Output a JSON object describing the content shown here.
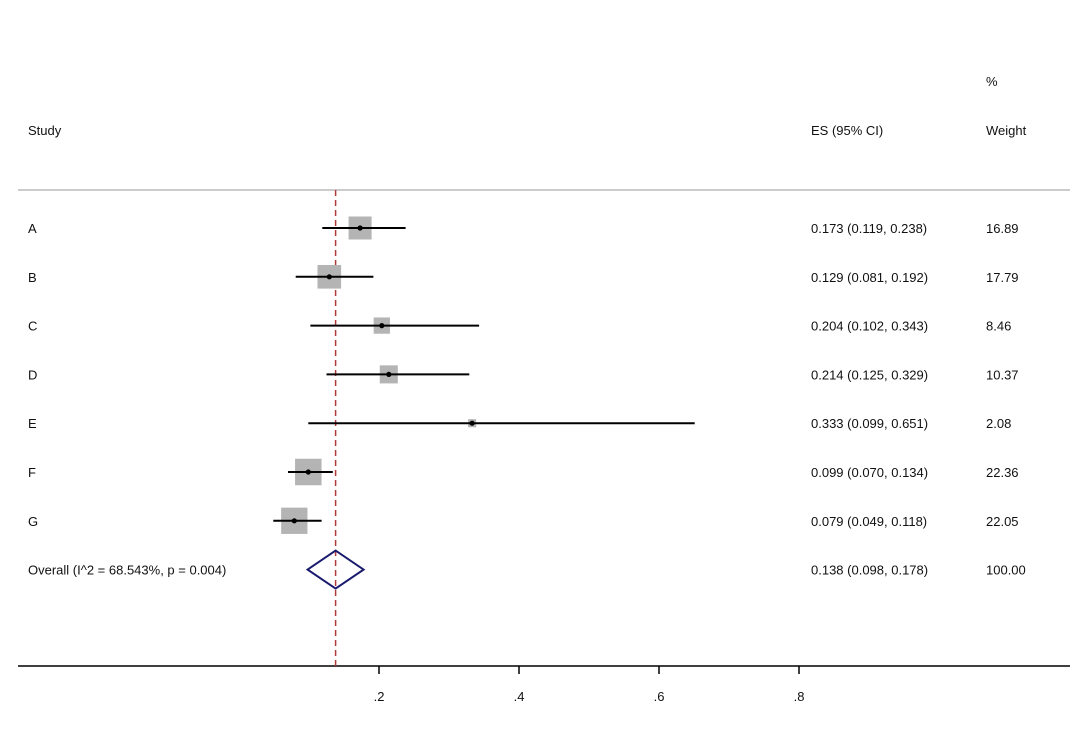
{
  "chart_data": {
    "type": "forest",
    "headers": {
      "study": "Study",
      "es": "ES (95% CI)",
      "weight_top": "%",
      "weight": "Weight"
    },
    "studies": [
      {
        "label": "A",
        "es": 0.173,
        "lo": 0.119,
        "hi": 0.238,
        "es_text": "0.173 (0.119, 0.238)",
        "weight": 16.89,
        "weight_text": "16.89"
      },
      {
        "label": "B",
        "es": 0.129,
        "lo": 0.081,
        "hi": 0.192,
        "es_text": "0.129 (0.081, 0.192)",
        "weight": 17.79,
        "weight_text": "17.79"
      },
      {
        "label": "C",
        "es": 0.204,
        "lo": 0.102,
        "hi": 0.343,
        "es_text": "0.204 (0.102, 0.343)",
        "weight": 8.46,
        "weight_text": "8.46"
      },
      {
        "label": "D",
        "es": 0.214,
        "lo": 0.125,
        "hi": 0.329,
        "es_text": "0.214 (0.125, 0.329)",
        "weight": 10.37,
        "weight_text": "10.37"
      },
      {
        "label": "E",
        "es": 0.333,
        "lo": 0.099,
        "hi": 0.651,
        "es_text": "0.333 (0.099, 0.651)",
        "weight": 2.08,
        "weight_text": "2.08"
      },
      {
        "label": "F",
        "es": 0.099,
        "lo": 0.07,
        "hi": 0.134,
        "es_text": "0.099 (0.070, 0.134)",
        "weight": 22.36,
        "weight_text": "22.36"
      },
      {
        "label": "G",
        "es": 0.079,
        "lo": 0.049,
        "hi": 0.118,
        "es_text": "0.079 (0.049, 0.118)",
        "weight": 22.05,
        "weight_text": "22.05"
      }
    ],
    "overall": {
      "label": "Overall  (I^2 = 68.543%, p = 0.004)",
      "es": 0.138,
      "lo": 0.098,
      "hi": 0.178,
      "es_text": "0.138 (0.098, 0.178)",
      "weight_text": "100.00"
    },
    "x_ticks": [
      0.2,
      0.4,
      0.6,
      0.8
    ],
    "x_tick_labels": [
      ".2",
      ".4",
      ".6",
      ".8"
    ],
    "colors": {
      "box": "#b4b4b4",
      "diamond": "#1a1a6e",
      "ref_line": "#b03a3a",
      "line": "#000000"
    }
  }
}
